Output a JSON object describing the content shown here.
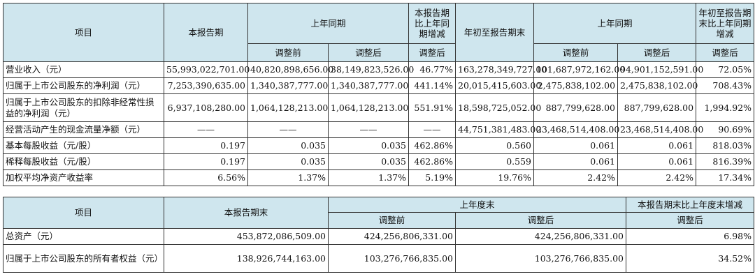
{
  "table1": {
    "headers": {
      "item": "项目",
      "current_period": "本报告期",
      "same_period_last_year": "上年同期",
      "change_pct": "本报告期比上年同期增减",
      "ytd": "年初至报告期末",
      "same_period_last_year_2": "上年同期",
      "ytd_change": "年初至报告期末比上年同期增减",
      "before_adj": "调整前",
      "after_adj": "调整后",
      "after_adj_change": "调整后",
      "before_adj_2": "调整前",
      "after_adj_2": "调整后",
      "after_adj_change_2": "调整后"
    },
    "rows": [
      {
        "label": "营业收入（元）",
        "cells": [
          "55,993,022,701.00",
          "40,820,898,656.00",
          "38,149,823,526.00",
          "46.77%",
          "163,278,349,727.00",
          "101,687,972,162.00",
          "94,901,152,591.00",
          "72.05%"
        ]
      },
      {
        "label": "归属于上市公司股东的净利润（元）",
        "cells": [
          "7,253,390,635.00",
          "1,340,387,777.00",
          "1,340,387,777.00",
          "441.14%",
          "20,015,415,603.00",
          "2,475,838,102.00",
          "2,475,838,102.00",
          "708.43%"
        ]
      },
      {
        "label": "归属于上市公司股东的扣除非经常性损益的净利润（元）",
        "cells": [
          "6,937,108,280.00",
          "1,064,128,213.00",
          "1,064,128,213.00",
          "551.91%",
          "18,598,725,052.00",
          "887,799,628.00",
          "887,799,628.00",
          "1,994.92%"
        ]
      },
      {
        "label": "经营活动产生的现金流量净额（元）",
        "cells": [
          "——",
          "——",
          "——",
          "——",
          "44,751,381,483.00",
          "23,468,514,408.00",
          "23,468,514,408.00",
          "90.69%"
        ]
      },
      {
        "label": "基本每股收益（元/股）",
        "cells": [
          "0.197",
          "0.035",
          "0.035",
          "462.86%",
          "0.560",
          "0.061",
          "0.061",
          "818.03%"
        ]
      },
      {
        "label": "稀释每股收益（元/股）",
        "cells": [
          "0.197",
          "0.035",
          "0.035",
          "462.86%",
          "0.559",
          "0.061",
          "0.061",
          "816.39%"
        ]
      },
      {
        "label": "加权平均净资产收益率",
        "cells": [
          "6.56%",
          "1.37%",
          "1.37%",
          "5.19%",
          "19.76%",
          "2.42%",
          "2.42%",
          "17.34%"
        ]
      }
    ]
  },
  "table2": {
    "headers": {
      "item": "项目",
      "period_end": "本报告期末",
      "last_year_end": "上年度末",
      "change": "本报告期末比上年度末增减",
      "before_adj": "调整前",
      "after_adj": "调整后",
      "after_adj_change": "调整后"
    },
    "rows": [
      {
        "label": "总资产（元）",
        "cells": [
          "453,872,086,509.00",
          "424,256,806,331.00",
          "424,256,806,331.00",
          "6.98%"
        ]
      },
      {
        "label": "归属于上市公司股东的所有者权益（元）",
        "cells": [
          "138,926,744,163.00",
          "103,276,766,835.00",
          "103,276,766,835.00",
          "34.52%"
        ]
      }
    ]
  },
  "colors": {
    "header_bg": "#cfe6ee",
    "border": "#333333"
  }
}
